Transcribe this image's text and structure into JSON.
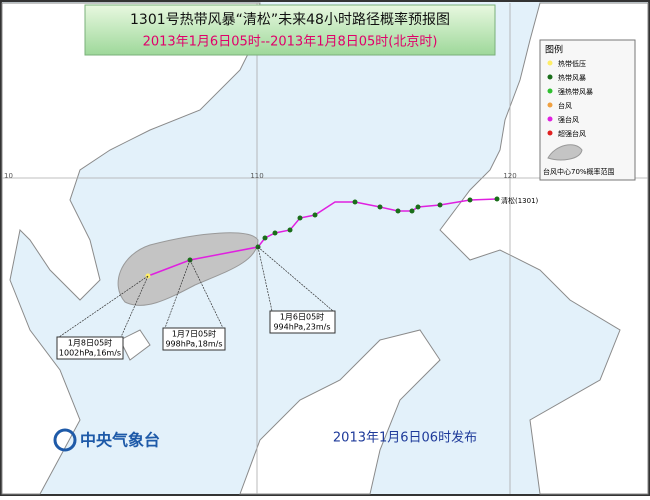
{
  "header": {
    "title": "1301号热带风暴“清松”未来48小时路径概率预报图",
    "subtitle": "2013年1月6日05时--2013年1月8日05时(北京时)"
  },
  "legend": {
    "title": "图例",
    "items": [
      "热带低压",
      "热带风暴",
      "强热带风暴",
      "台风",
      "强台风",
      "超强台风"
    ],
    "cone": "台风中心70%概率范围"
  },
  "grid_labels": [
    "10",
    "110",
    "120"
  ],
  "storm_label": "清松(1301)",
  "annotations": [
    {
      "time": "1月6日05时",
      "info": "994hPa,23m/s"
    },
    {
      "time": "1月7日05时",
      "info": "998hPa,18m/s"
    },
    {
      "time": "1月8日05时",
      "info": "1002hPa,16m/s"
    }
  ],
  "footer": {
    "agency": "中央气象台",
    "issued": "2013年1月6日06时发布"
  }
}
